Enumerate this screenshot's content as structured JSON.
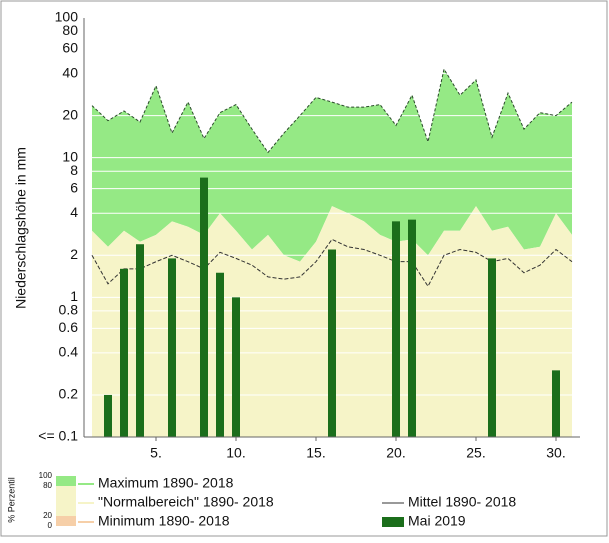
{
  "chart_data": {
    "type": "precipitation",
    "y_label": "Niederschlagshöhe in mm",
    "log_y": true,
    "grid": true,
    "x": [
      1,
      2,
      3,
      4,
      5,
      6,
      7,
      8,
      9,
      10,
      11,
      12,
      13,
      14,
      15,
      16,
      17,
      18,
      19,
      20,
      21,
      22,
      23,
      24,
      25,
      26,
      27,
      28,
      29,
      30,
      31
    ],
    "xlim": [
      0.5,
      31.5
    ],
    "xticks": [
      {
        "value": 5,
        "label": "5."
      },
      {
        "value": 10,
        "label": "10."
      },
      {
        "value": 15,
        "label": "15."
      },
      {
        "value": 20,
        "label": "20."
      },
      {
        "value": 25,
        "label": "25."
      },
      {
        "value": 30,
        "label": "30."
      }
    ],
    "ylim": [
      0.1,
      100
    ],
    "yticks": [
      {
        "value": 0.1,
        "label": "<= 0.1"
      },
      0.2,
      0.4,
      0.6,
      0.8,
      1,
      2,
      4,
      6,
      8,
      10,
      20,
      40,
      60,
      80,
      100
    ],
    "series": [
      {
        "name": "Maximum 1890- 2018",
        "type": "area",
        "color": "#95e985",
        "values": [
          23.6,
          18.4,
          21.6,
          18,
          32.7,
          15,
          25,
          13.7,
          21,
          24,
          16,
          10.9,
          15,
          20,
          27,
          25,
          23,
          23,
          24,
          17,
          28,
          13,
          43,
          28,
          36,
          14,
          29,
          16,
          21,
          20,
          25
        ]
      },
      {
        "name": "\"Normalbereich\" 1890- 2018",
        "type": "area",
        "color": "#f6f4c8",
        "values": [
          3.0,
          2.3,
          3.0,
          2.5,
          2.8,
          3.5,
          3.2,
          2.8,
          4.0,
          3.0,
          2.2,
          2.8,
          2.0,
          1.8,
          2.5,
          4.5,
          4.0,
          3.5,
          2.8,
          2.5,
          2.6,
          2.0,
          3.0,
          3.0,
          4.5,
          3.0,
          3.2,
          2.2,
          2.3,
          4.0,
          2.8
        ]
      },
      {
        "name": "Minimum 1890- 2018",
        "type": "area",
        "color": "#f6cfa8",
        "values": [
          0.1,
          0.1,
          0.1,
          0.1,
          0.1,
          0.1,
          0.1,
          0.1,
          0.1,
          0.1,
          0.1,
          0.1,
          0.1,
          0.1,
          0.1,
          0.1,
          0.1,
          0.1,
          0.1,
          0.1,
          0.1,
          0.1,
          0.1,
          0.1,
          0.1,
          0.1,
          0.1,
          0.1,
          0.1,
          0.1,
          0.1
        ]
      },
      {
        "name": "Mittel 1890- 2018",
        "type": "line",
        "color": "#333333",
        "values": [
          2.0,
          1.25,
          1.6,
          1.6,
          1.8,
          2.0,
          1.8,
          1.6,
          2.1,
          1.9,
          1.7,
          1.4,
          1.35,
          1.4,
          1.8,
          2.6,
          2.3,
          2.2,
          2.0,
          1.8,
          1.8,
          1.2,
          2.0,
          2.2,
          2.1,
          1.8,
          1.9,
          1.5,
          1.7,
          2.2,
          1.8
        ]
      },
      {
        "name": "Mai 2019",
        "type": "bar",
        "color": "#1b6e1b",
        "values": [
          null,
          0.2,
          1.6,
          2.4,
          null,
          1.9,
          null,
          7.2,
          1.5,
          1.0,
          null,
          null,
          null,
          null,
          null,
          2.2,
          null,
          null,
          null,
          3.5,
          3.6,
          null,
          null,
          null,
          null,
          1.9,
          null,
          null,
          null,
          0.3,
          null
        ]
      }
    ],
    "percentile_label": "% Perzentil",
    "percentile_ticks": [
      100,
      80,
      20,
      0
    ]
  }
}
